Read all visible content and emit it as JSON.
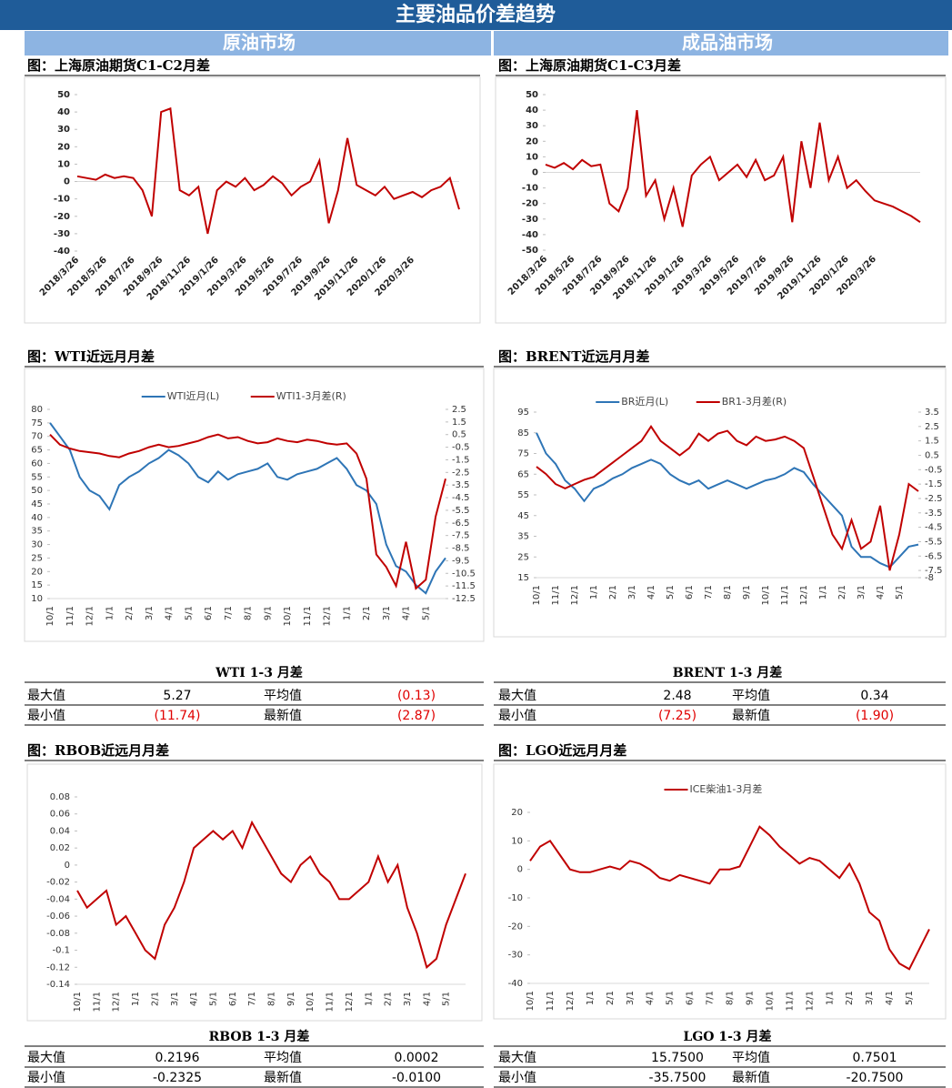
{
  "header": {
    "title": "主要油品价差趋势",
    "left": "原油市场",
    "right": "成品油市场"
  },
  "chart_data": [
    {
      "type": "line",
      "title": "图：上海原油期货C1-C2月差",
      "color": "#c00000",
      "categories": [
        "2018/3/26",
        null,
        null,
        "2018/5/26",
        null,
        null,
        "2018/7/26",
        null,
        null,
        "2018/9/26",
        null,
        null,
        "2018/11/26",
        null,
        null,
        "2019/1/26",
        null,
        null,
        "2019/3/26",
        null,
        null,
        "2019/5/26",
        null,
        null,
        "2019/7/26",
        null,
        null,
        "2019/9/26",
        null,
        null,
        "2019/11/26",
        null,
        null,
        "2020/1/26",
        null,
        null,
        "2020/3/26",
        null,
        null,
        null,
        null,
        null
      ],
      "values": [
        3,
        2,
        1,
        4,
        2,
        3,
        2,
        -5,
        -20,
        40,
        42,
        -5,
        -8,
        -3,
        -30,
        -5,
        0,
        -3,
        2,
        -5,
        -2,
        3,
        -1,
        -8,
        -3,
        0,
        12,
        -24,
        -5,
        25,
        -2,
        -5,
        -8,
        -3,
        -10,
        -8,
        -6,
        -9,
        -5,
        -3,
        2,
        -16
      ],
      "ylim": [
        -40,
        50
      ],
      "yticks": [
        50,
        40,
        30,
        20,
        10,
        0,
        -10,
        -20,
        -30,
        -40
      ]
    },
    {
      "type": "line",
      "title": "图：上海原油期货C1-C3月差",
      "color": "#c00000",
      "categories": [
        "2018/3/26",
        null,
        null,
        "2018/5/26",
        null,
        null,
        "2018/7/26",
        null,
        null,
        "2018/9/26",
        null,
        null,
        "2018/11/26",
        null,
        null,
        "2019/1/26",
        null,
        null,
        "2019/3/26",
        null,
        null,
        "2019/5/26",
        null,
        null,
        "2019/7/26",
        null,
        null,
        "2019/9/26",
        null,
        null,
        "2019/11/26",
        null,
        null,
        "2020/1/26",
        null,
        null,
        "2020/3/26",
        null,
        null,
        null,
        null,
        null
      ],
      "values": [
        5,
        3,
        6,
        2,
        8,
        4,
        5,
        -20,
        -25,
        -10,
        40,
        -15,
        -5,
        -30,
        -10,
        -35,
        -2,
        5,
        10,
        -5,
        0,
        5,
        -3,
        8,
        -5,
        -2,
        10,
        -32,
        20,
        -10,
        32,
        -5,
        10,
        -10,
        -5,
        -12,
        -18,
        -20,
        -22,
        -25,
        -28,
        -32
      ],
      "ylim": [
        -50,
        50
      ],
      "yticks": [
        50,
        40,
        30,
        20,
        10,
        0,
        -10,
        -20,
        -30,
        -40,
        -50
      ]
    },
    {
      "type": "line",
      "title": "图：WTI近远月月差",
      "categories": [
        "10/1",
        null,
        "11/1",
        null,
        "12/1",
        null,
        "1/1",
        null,
        "2/1",
        null,
        "3/1",
        null,
        "4/1",
        null,
        "5/1",
        null,
        "6/1",
        null,
        "7/1",
        null,
        "8/1",
        null,
        "9/1",
        null,
        "10/1",
        null,
        "11/1",
        null,
        "12/1",
        null,
        "1/1",
        null,
        "2/1",
        null,
        "3/1",
        null,
        "4/1",
        null,
        "5/1",
        null,
        null
      ],
      "series": [
        {
          "name": "WTI近月(L)",
          "color": "#2e75b6",
          "values": [
            75,
            70,
            65,
            55,
            50,
            48,
            43,
            52,
            55,
            57,
            60,
            62,
            65,
            63,
            60,
            55,
            53,
            57,
            54,
            56,
            57,
            58,
            60,
            55,
            54,
            56,
            57,
            58,
            60,
            62,
            58,
            52,
            50,
            45,
            30,
            22,
            20,
            15,
            12,
            20,
            25
          ]
        },
        {
          "name": "WTI1-3月差(R)",
          "color": "#c00000",
          "axis": "y2",
          "values": [
            0.5,
            -0.3,
            -0.6,
            -0.8,
            -0.9,
            -1,
            -1.2,
            -1.3,
            -1,
            -0.8,
            -0.5,
            -0.3,
            -0.5,
            -0.4,
            -0.2,
            0,
            0.3,
            0.5,
            0.2,
            0.3,
            0,
            -0.2,
            -0.1,
            0.2,
            0,
            -0.1,
            0.1,
            0,
            -0.2,
            -0.3,
            -0.2,
            -1,
            -3,
            -9,
            -10,
            -11.5,
            -8,
            -11.7,
            -11,
            -6,
            -3
          ]
        }
      ],
      "ylim": [
        10,
        80
      ],
      "yticks": [
        80,
        75,
        70,
        65,
        60,
        55,
        50,
        45,
        40,
        35,
        30,
        25,
        20,
        15,
        10
      ],
      "y2lim": [
        -12.5,
        2.5
      ],
      "y2ticks": [
        2.5,
        1.5,
        0.5,
        -0.5,
        -1.5,
        -2.5,
        -3.5,
        -4.5,
        -5.5,
        -6.5,
        -7.5,
        -8.5,
        -9.5,
        -10.5,
        -11.5,
        -12.5
      ],
      "legend": "top"
    },
    {
      "type": "line",
      "title": "图：BRENT近远月月差",
      "categories": [
        "10/1",
        null,
        "11/1",
        null,
        "12/1",
        null,
        "1/1",
        null,
        "2/1",
        null,
        "3/1",
        null,
        "4/1",
        null,
        "5/1",
        null,
        "6/1",
        null,
        "7/1",
        null,
        "8/1",
        null,
        "9/1",
        null,
        "10/1",
        null,
        "11/1",
        null,
        "12/1",
        null,
        "1/1",
        null,
        "2/1",
        null,
        "3/1",
        null,
        "4/1",
        null,
        "5/1",
        null,
        null
      ],
      "series": [
        {
          "name": "BR近月(L)",
          "color": "#2e75b6",
          "values": [
            85,
            75,
            70,
            62,
            58,
            52,
            58,
            60,
            63,
            65,
            68,
            70,
            72,
            70,
            65,
            62,
            60,
            62,
            58,
            60,
            62,
            60,
            58,
            60,
            62,
            63,
            65,
            68,
            66,
            60,
            55,
            50,
            45,
            30,
            25,
            25,
            22,
            20,
            25,
            30,
            31
          ]
        },
        {
          "name": "BR1-3月差(R)",
          "color": "#c00000",
          "axis": "y2",
          "values": [
            -0.3,
            -0.8,
            -1.5,
            -1.8,
            -1.5,
            -1.2,
            -1,
            -0.5,
            0,
            0.5,
            1,
            1.5,
            2.5,
            1.5,
            1,
            0.5,
            1,
            2,
            1.5,
            2,
            2.2,
            1.5,
            1.2,
            1.8,
            1.5,
            1.6,
            1.8,
            1.5,
            1,
            -1,
            -3,
            -5,
            -6,
            -4,
            -6,
            -5.5,
            -3,
            -7.5,
            -5,
            -1.5,
            -2
          ]
        }
      ],
      "ylim": [
        15,
        95
      ],
      "yticks": [
        95,
        85,
        75,
        65,
        55,
        45,
        35,
        25,
        15
      ],
      "y2lim": [
        -8,
        3.5
      ],
      "y2ticks": [
        3.5,
        2.5,
        1.5,
        0.5,
        -0.5,
        -1.5,
        -2.5,
        -3.5,
        -4.5,
        -5.5,
        -6.5,
        -7.5,
        -8
      ],
      "legend": "top"
    },
    {
      "type": "line",
      "title": "图：RBOB近远月月差",
      "color": "#c00000",
      "categories": [
        "10/1",
        null,
        "11/1",
        null,
        "12/1",
        null,
        "1/1",
        null,
        "2/1",
        null,
        "3/1",
        null,
        "4/1",
        null,
        "5/1",
        null,
        "6/1",
        null,
        "7/1",
        null,
        "8/1",
        null,
        "9/1",
        null,
        "10/1",
        null,
        "11/1",
        null,
        "12/1",
        null,
        "1/1",
        null,
        "2/1",
        null,
        "3/1",
        null,
        "4/1",
        null,
        "5/1",
        null,
        null
      ],
      "values": [
        -0.03,
        -0.05,
        -0.04,
        -0.03,
        -0.07,
        -0.06,
        -0.08,
        -0.1,
        -0.11,
        -0.07,
        -0.05,
        -0.02,
        0.02,
        0.03,
        0.04,
        0.03,
        0.04,
        0.02,
        0.05,
        0.03,
        0.01,
        -0.01,
        -0.02,
        0,
        0.01,
        -0.01,
        -0.02,
        -0.04,
        -0.04,
        -0.03,
        -0.02,
        0.01,
        -0.02,
        0,
        -0.05,
        -0.08,
        -0.12,
        -0.11,
        -0.07,
        -0.04,
        -0.01
      ],
      "ylim": [
        -0.14,
        0.08
      ],
      "yticks": [
        0.08,
        0.06,
        0.04,
        0.02,
        0,
        -0.02,
        -0.04,
        -0.06,
        -0.08,
        -0.1,
        -0.12,
        -0.14
      ]
    },
    {
      "type": "line",
      "title": "图：LGO近远月月差",
      "categories": [
        "10/1",
        null,
        "11/1",
        null,
        "12/1",
        null,
        "1/1",
        null,
        "2/1",
        null,
        "3/1",
        null,
        "4/1",
        null,
        "5/1",
        null,
        "6/1",
        null,
        "7/1",
        null,
        "8/1",
        null,
        "9/1",
        null,
        "10/1",
        null,
        "11/1",
        null,
        "12/1",
        null,
        "1/1",
        null,
        "2/1",
        null,
        "3/1",
        null,
        "4/1",
        null,
        "5/1",
        null,
        null
      ],
      "series": [
        {
          "name": "ICE柴油1-3月差",
          "color": "#c00000",
          "values": [
            3,
            8,
            10,
            5,
            0,
            -1,
            -1,
            0,
            1,
            0,
            3,
            2,
            0,
            -3,
            -4,
            -2,
            -3,
            -4,
            -5,
            0,
            0,
            1,
            8,
            15,
            12,
            8,
            5,
            2,
            4,
            3,
            0,
            -3,
            2,
            -5,
            -15,
            -18,
            -28,
            -33,
            -35,
            -28,
            -21
          ]
        }
      ],
      "ylim": [
        -40,
        20
      ],
      "yticks": [
        20,
        10,
        0,
        -10,
        -20,
        -30,
        -40
      ],
      "legend": "top"
    }
  ],
  "stats": [
    {
      "title": "WTI 1-3 月差",
      "rows": [
        [
          "最大值",
          "5.27",
          "平均值",
          "(0.13)"
        ],
        [
          "最小值",
          "(11.74)",
          "最新值",
          "(2.87)"
        ]
      ]
    },
    {
      "title": "BRENT 1-3 月差",
      "rows": [
        [
          "最大值",
          "2.48",
          "平均值",
          "0.34"
        ],
        [
          "最小值",
          "(7.25)",
          "最新值",
          "(1.90)"
        ]
      ]
    },
    {
      "title": "RBOB 1-3 月差",
      "rows": [
        [
          "最大值",
          "0.2196",
          "平均值",
          "0.0002"
        ],
        [
          "最小值",
          "-0.2325",
          "最新值",
          "-0.0100"
        ]
      ]
    },
    {
      "title": "LGO 1-3 月差",
      "rows": [
        [
          "最大值",
          "15.7500",
          "平均值",
          "0.7501"
        ],
        [
          "最小值",
          "-35.7500",
          "最新值",
          "-20.7500"
        ]
      ]
    }
  ]
}
